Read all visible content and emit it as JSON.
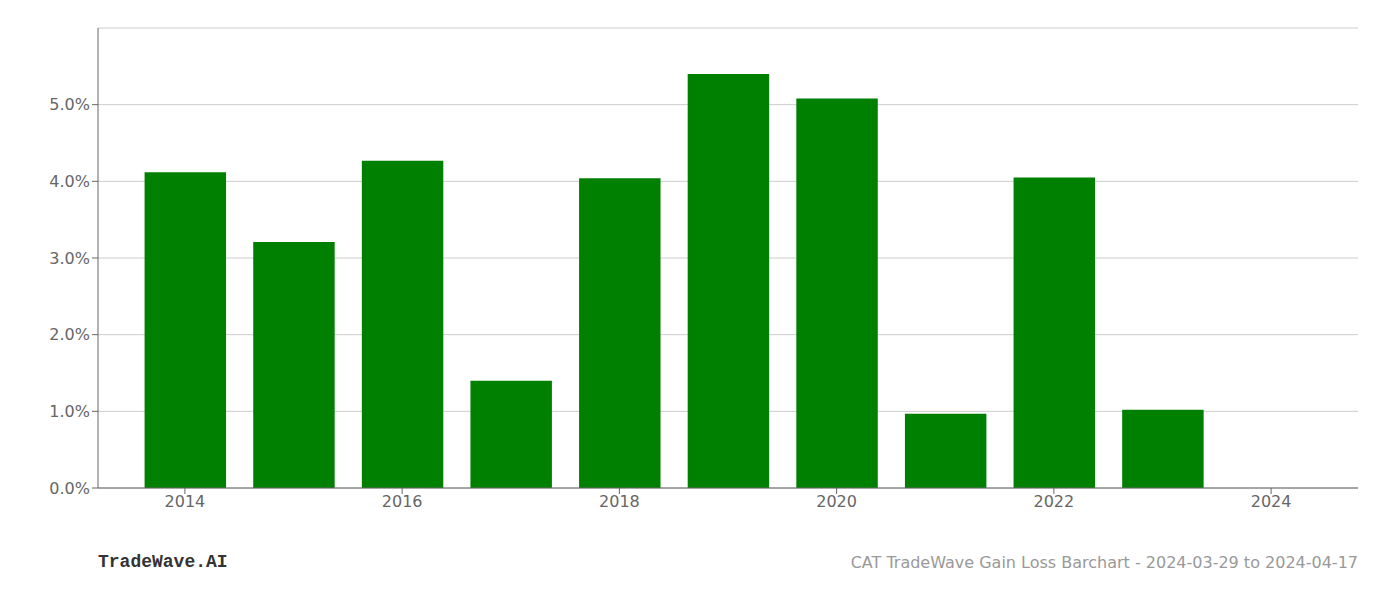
{
  "chart_data": {
    "type": "bar",
    "title": "CAT TradeWave Gain Loss Barchart - 2024-03-29 to 2024-04-17",
    "annotations": [
      "TradeWave.AI"
    ],
    "x": [
      2014,
      2015,
      2016,
      2017,
      2018,
      2019,
      2020,
      2021,
      2022,
      2023
    ],
    "values": [
      0.0412,
      0.0321,
      0.0427,
      0.014,
      0.0404,
      0.054,
      0.0508,
      0.0097,
      0.0405,
      0.0102
    ],
    "color": "#008000",
    "xlim": [
      2013.2,
      2024.8
    ],
    "xticks": [
      2014,
      2016,
      2018,
      2020,
      2022,
      2024
    ],
    "ylim": [
      0.0,
      0.06
    ],
    "yticks": [
      {
        "value": 0.0,
        "label": "0.0%"
      },
      {
        "value": 0.01,
        "label": "1.0%"
      },
      {
        "value": 0.02,
        "label": "2.0%"
      },
      {
        "value": 0.03,
        "label": "3.0%"
      },
      {
        "value": 0.04,
        "label": "4.0%"
      },
      {
        "value": 0.05,
        "label": "5.0%"
      }
    ],
    "grid": true
  }
}
